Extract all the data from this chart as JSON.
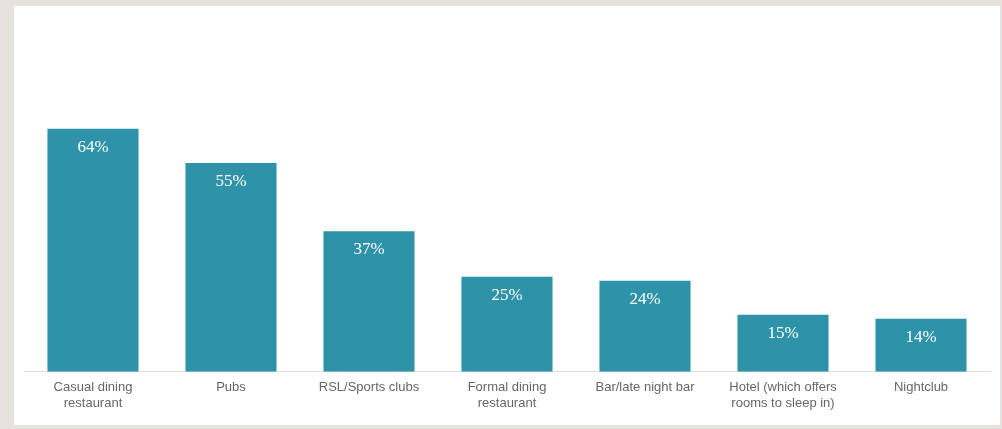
{
  "chart_data": {
    "type": "bar",
    "categories": [
      "Casual dining restaurant",
      "Pubs",
      "RSL/Sports clubs",
      "Formal dining restaurant",
      "Bar/late night bar",
      "Hotel (which offers rooms to sleep in)",
      "Nightclub"
    ],
    "values": [
      64,
      55,
      37,
      25,
      24,
      15,
      14
    ],
    "value_labels": [
      "64%",
      "55%",
      "37%",
      "25%",
      "24%",
      "15%",
      "14%"
    ],
    "color": "#2e93a8",
    "tick_labels": "x",
    "grid": false,
    "legend": false
  }
}
